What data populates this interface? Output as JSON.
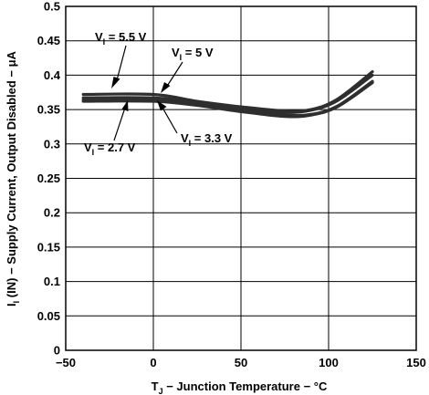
{
  "chart_data": {
    "type": "line",
    "xlabel": {
      "pre": "T",
      "sub": "J",
      "post": " − Junction Temperature − °C"
    },
    "ylabel": {
      "pre": "I",
      "sub1": "I",
      "mid": " (IN)",
      "post": " − Supply Current, Output Disabled − μA"
    },
    "xlim": [
      -50,
      150
    ],
    "ylim": [
      0,
      0.5
    ],
    "xticks": [
      -50,
      0,
      50,
      100,
      150
    ],
    "xtick_labels": [
      "−50",
      "0",
      "50",
      "100",
      "150"
    ],
    "yticks": [
      0,
      0.05,
      0.1,
      0.15,
      0.2,
      0.25,
      0.3,
      0.35,
      0.4,
      0.45,
      0.5
    ],
    "ytick_labels": [
      "0",
      "0.05",
      "0.1",
      "0.15",
      "0.2",
      "0.25",
      "0.3",
      "0.35",
      "0.4",
      "0.45",
      "0.5"
    ],
    "grid": true,
    "series": [
      {
        "name": {
          "pre": "V",
          "sub": "I",
          "post": " = 5.5 V"
        },
        "x": [
          -40,
          0,
          25,
          50,
          75,
          90,
          105,
          125
        ],
        "y": [
          0.372,
          0.372,
          0.362,
          0.354,
          0.348,
          0.35,
          0.365,
          0.405
        ]
      },
      {
        "name": {
          "pre": "V",
          "sub": "I",
          "post": " = 5 V"
        },
        "x": [
          -40,
          0,
          25,
          50,
          75,
          90,
          105,
          125
        ],
        "y": [
          0.367,
          0.367,
          0.36,
          0.352,
          0.346,
          0.349,
          0.363,
          0.4
        ]
      },
      {
        "name": {
          "pre": "V",
          "sub": "I",
          "post": " = 3.3 V"
        },
        "x": [
          -40,
          0,
          25,
          50,
          75,
          90,
          105,
          125
        ],
        "y": [
          0.364,
          0.364,
          0.358,
          0.349,
          0.342,
          0.343,
          0.355,
          0.391
        ]
      },
      {
        "name": {
          "pre": "V",
          "sub": "I",
          "post": " = 2.7 V"
        },
        "x": [
          -40,
          0,
          25,
          50,
          75,
          90,
          105,
          125
        ],
        "y": [
          0.362,
          0.362,
          0.356,
          0.347,
          0.34,
          0.342,
          0.354,
          0.389
        ]
      }
    ]
  }
}
